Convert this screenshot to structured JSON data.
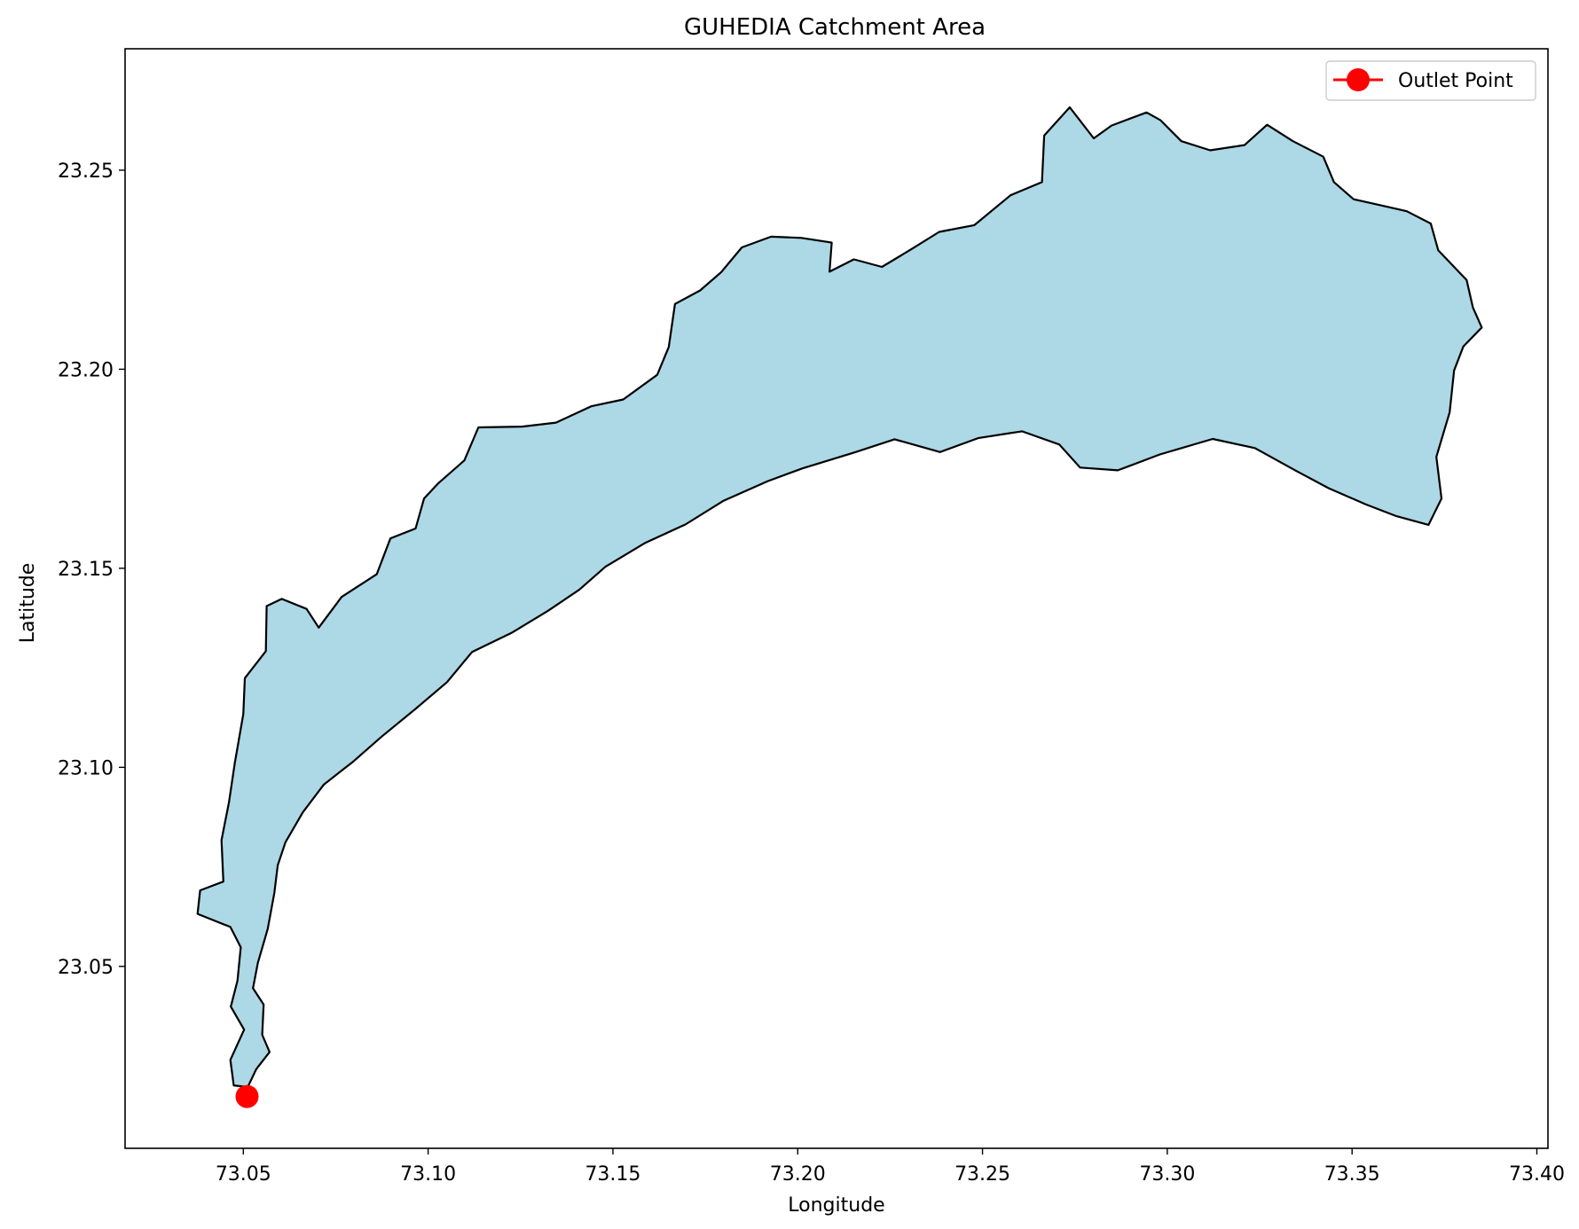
{
  "chart_data": {
    "type": "map",
    "title": "GUHEDIA Catchment Area",
    "xlabel": "Longitude",
    "ylabel": "Latitude",
    "xlim": [
      73.018,
      73.403
    ],
    "ylim": [
      23.0043,
      23.2805
    ],
    "x_ticks": [
      73.05,
      73.1,
      73.15,
      73.2,
      73.25,
      73.3,
      73.35,
      73.4
    ],
    "x_tick_labels": [
      "73.05",
      "73.10",
      "73.15",
      "73.20",
      "73.25",
      "73.30",
      "73.35",
      "73.40"
    ],
    "y_ticks": [
      23.05,
      23.1,
      23.15,
      23.2,
      23.25
    ],
    "y_tick_labels": [
      "23.05",
      "23.10",
      "23.15",
      "23.20",
      "23.25"
    ],
    "grid": false,
    "legend": {
      "placement": "top-right",
      "entries": [
        {
          "label": "Outlet Point",
          "marker": "circle",
          "color": "#ff0000"
        }
      ]
    },
    "catchment": {
      "fill_color": "#add8e6",
      "edge_color": "#000000",
      "boundary": [
        [
          73.0512,
          23.0197
        ],
        [
          73.0535,
          23.0242
        ],
        [
          73.0571,
          23.0285
        ],
        [
          73.0551,
          23.0328
        ],
        [
          73.0555,
          23.0404
        ],
        [
          73.0526,
          23.0445
        ],
        [
          73.0539,
          23.0508
        ],
        [
          73.0566,
          23.0594
        ],
        [
          73.0584,
          23.0685
        ],
        [
          73.0593,
          23.0754
        ],
        [
          73.0614,
          23.0812
        ],
        [
          73.0661,
          23.0887
        ],
        [
          73.0718,
          23.0957
        ],
        [
          73.0798,
          23.1015
        ],
        [
          73.0874,
          23.1077
        ],
        [
          73.0966,
          23.1147
        ],
        [
          73.1051,
          23.1214
        ],
        [
          73.1119,
          23.129
        ],
        [
          73.1228,
          23.1339
        ],
        [
          73.1324,
          23.1393
        ],
        [
          73.1409,
          23.1446
        ],
        [
          73.148,
          23.1504
        ],
        [
          73.1588,
          23.1564
        ],
        [
          73.1696,
          23.161
        ],
        [
          73.18,
          23.167
        ],
        [
          73.1919,
          23.1719
        ],
        [
          73.2013,
          23.1751
        ],
        [
          73.2154,
          23.1791
        ],
        [
          73.2262,
          23.1824
        ],
        [
          73.2385,
          23.1792
        ],
        [
          73.2488,
          23.1827
        ],
        [
          73.2607,
          23.1844
        ],
        [
          73.2708,
          23.1811
        ],
        [
          73.2764,
          23.1753
        ],
        [
          73.2866,
          23.1746
        ],
        [
          73.298,
          23.1786
        ],
        [
          73.3123,
          23.1825
        ],
        [
          73.3237,
          23.1802
        ],
        [
          73.335,
          23.1744
        ],
        [
          73.3437,
          23.1701
        ],
        [
          73.3536,
          23.1661
        ],
        [
          73.362,
          23.1631
        ],
        [
          73.3707,
          23.1609
        ],
        [
          73.3742,
          23.1675
        ],
        [
          73.3728,
          23.178
        ],
        [
          73.3764,
          23.1892
        ],
        [
          73.3776,
          23.1997
        ],
        [
          73.3801,
          23.2057
        ],
        [
          73.3851,
          23.2105
        ],
        [
          73.3827,
          23.2155
        ],
        [
          73.381,
          23.2224
        ],
        [
          73.3733,
          23.2299
        ],
        [
          73.3713,
          23.2366
        ],
        [
          73.3648,
          23.2397
        ],
        [
          73.3562,
          23.2415
        ],
        [
          73.3504,
          23.2427
        ],
        [
          73.3451,
          23.247
        ],
        [
          73.3422,
          23.2534
        ],
        [
          73.334,
          23.2573
        ],
        [
          73.327,
          23.2614
        ],
        [
          73.3209,
          23.2563
        ],
        [
          73.3116,
          23.255
        ],
        [
          73.3038,
          23.2573
        ],
        [
          73.2981,
          23.2626
        ],
        [
          73.2944,
          23.2645
        ],
        [
          73.2849,
          23.2612
        ],
        [
          73.2801,
          23.258
        ],
        [
          73.2736,
          23.2658
        ],
        [
          73.2667,
          23.2587
        ],
        [
          73.2661,
          23.247
        ],
        [
          73.2576,
          23.2437
        ],
        [
          73.2478,
          23.2362
        ],
        [
          73.2383,
          23.2345
        ],
        [
          73.2305,
          23.23
        ],
        [
          73.2228,
          23.2257
        ],
        [
          73.2152,
          23.2276
        ],
        [
          73.2086,
          23.2245
        ],
        [
          73.2092,
          23.2318
        ],
        [
          73.201,
          23.233
        ],
        [
          73.1928,
          23.2333
        ],
        [
          73.1849,
          23.2306
        ],
        [
          73.1793,
          23.2244
        ],
        [
          73.1736,
          23.2198
        ],
        [
          73.1668,
          23.2164
        ],
        [
          73.1651,
          23.2056
        ],
        [
          73.162,
          23.1986
        ],
        [
          73.1528,
          23.1924
        ],
        [
          73.1441,
          23.1907
        ],
        [
          73.1346,
          23.1866
        ],
        [
          73.1254,
          23.1856
        ],
        [
          73.1136,
          23.1854
        ],
        [
          73.1098,
          23.1771
        ],
        [
          73.1028,
          23.1714
        ],
        [
          73.0989,
          23.1675
        ],
        [
          73.0966,
          23.16
        ],
        [
          73.0898,
          23.1575
        ],
        [
          73.0861,
          23.1485
        ],
        [
          73.0766,
          23.1428
        ],
        [
          73.0704,
          23.1351
        ],
        [
          73.0671,
          23.1398
        ],
        [
          73.0604,
          23.1423
        ],
        [
          73.0563,
          23.1405
        ],
        [
          73.0561,
          23.1292
        ],
        [
          73.0504,
          23.1224
        ],
        [
          73.05,
          23.1134
        ],
        [
          73.0477,
          23.1011
        ],
        [
          73.0461,
          23.0912
        ],
        [
          73.0441,
          23.0817
        ],
        [
          73.0446,
          23.0713
        ],
        [
          73.0383,
          23.0691
        ],
        [
          73.0376,
          23.0632
        ],
        [
          73.0465,
          23.0599
        ],
        [
          73.0493,
          23.0548
        ],
        [
          73.0484,
          23.0464
        ],
        [
          73.0466,
          23.0399
        ],
        [
          73.0502,
          23.0341
        ],
        [
          73.0465,
          23.0265
        ],
        [
          73.0474,
          23.0201
        ],
        [
          73.0512,
          23.0197
        ]
      ]
    },
    "outlet_point": {
      "label": "Outlet Point",
      "lon": 73.051,
      "lat": 23.0173,
      "color": "#ff0000"
    }
  }
}
